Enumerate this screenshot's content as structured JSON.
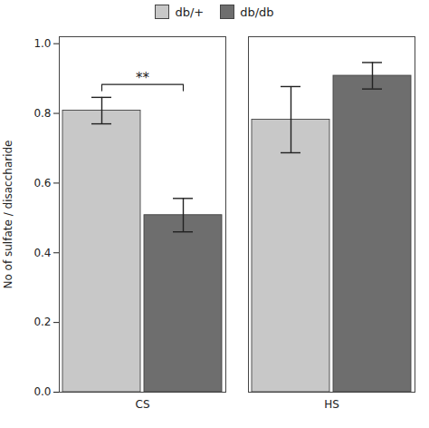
{
  "chart_data": {
    "type": "bar",
    "categories": [
      "CS",
      "HS"
    ],
    "series": [
      {
        "name": "db/+",
        "color": "#c8c8c8",
        "values": [
          0.808,
          0.782
        ],
        "errors": [
          0.038,
          0.095
        ]
      },
      {
        "name": "db/db",
        "color": "#6e6e6e",
        "values": [
          0.508,
          0.908
        ],
        "errors": [
          0.048,
          0.038
        ]
      }
    ],
    "ylabel": "No of sulfate / disaccharide",
    "ylim": [
      0.0,
      1.02
    ],
    "yticks": [
      {
        "value": 0.0,
        "label": "0.0"
      },
      {
        "value": 0.2,
        "label": "0.2"
      },
      {
        "value": 0.4,
        "label": "0.4"
      },
      {
        "value": 0.6,
        "label": "0.6"
      },
      {
        "value": 0.8,
        "label": "0.8"
      },
      {
        "value": 1.0,
        "label": "1.0"
      }
    ],
    "grid": false,
    "legend": "upper center",
    "annotations": [
      {
        "text": "**",
        "category": "CS",
        "y": 0.865,
        "height": 0.018
      }
    ]
  }
}
